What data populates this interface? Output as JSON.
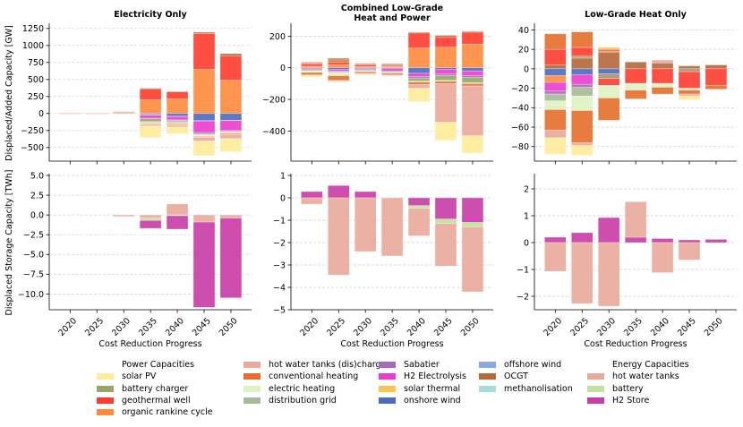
{
  "chart_data": [
    {
      "type": "bar",
      "stacked": true,
      "panel": "top-left",
      "title": "Electricity Only",
      "xlabel": "",
      "ylabel": "Displaced/Added Capacity [GW]",
      "categories": [
        "2020",
        "2025",
        "2030",
        "2035",
        "2040",
        "2045",
        "2050"
      ],
      "ylim": [
        -700,
        1300
      ],
      "yticks": [
        -500,
        -250,
        0,
        250,
        500,
        750,
        1000,
        1250
      ],
      "ytick_labels": [
        "−500",
        "−250",
        "0",
        "250",
        "500",
        "750",
        "1000",
        "1250"
      ],
      "grid": true,
      "series": [
        {
          "name": "organic rankine cycle",
          "values": [
            2,
            1,
            12,
            200,
            215,
            650,
            490
          ]
        },
        {
          "name": "geothermal well",
          "values": [
            1,
            1,
            10,
            165,
            105,
            525,
            355
          ]
        },
        {
          "name": "OCGT",
          "values": [
            0,
            0,
            5,
            5,
            5,
            20,
            35
          ]
        },
        {
          "name": "onshore wind",
          "values": [
            0,
            0,
            0,
            -15,
            -40,
            -105,
            -100
          ]
        },
        {
          "name": "offshore wind",
          "values": [
            0,
            0,
            0,
            -10,
            -5,
            -5,
            -5
          ]
        },
        {
          "name": "H2 Electrolysis",
          "values": [
            0,
            0,
            0,
            -45,
            -50,
            -170,
            -145
          ]
        },
        {
          "name": "Sabatier",
          "values": [
            0,
            0,
            0,
            -5,
            -10,
            -20,
            -10
          ]
        },
        {
          "name": "battery charger",
          "values": [
            0,
            0,
            0,
            -45,
            -15,
            -10,
            -10
          ]
        },
        {
          "name": "distribution grid",
          "values": [
            0,
            0,
            0,
            -10,
            -15,
            -10,
            -10
          ]
        },
        {
          "name": "electric heating",
          "values": [
            0,
            0,
            0,
            -10,
            -15,
            -15,
            -10
          ]
        },
        {
          "name": "conventional heating",
          "values": [
            0,
            0,
            0,
            -10,
            -15,
            -10,
            -15
          ]
        },
        {
          "name": "solar thermal",
          "values": [
            0,
            0,
            0,
            -10,
            -10,
            -5,
            -5
          ]
        },
        {
          "name": "hot water tanks (dis)charger",
          "values": [
            0,
            0,
            0,
            -25,
            -25,
            -55,
            -60
          ]
        },
        {
          "name": "solar PV",
          "values": [
            0,
            0,
            0,
            -170,
            -100,
            -215,
            -190
          ]
        }
      ]
    },
    {
      "type": "bar",
      "stacked": true,
      "panel": "top-center",
      "title": "Combined Low-Grade\nHeat and Power",
      "xlabel": "",
      "ylabel": "",
      "categories": [
        "2020",
        "2025",
        "2030",
        "2035",
        "2040",
        "2045",
        "2050"
      ],
      "ylim": [
        -590,
        270
      ],
      "yticks": [
        -400,
        -200,
        0,
        200
      ],
      "ytick_labels": [
        "−400",
        "−200",
        "0",
        "200"
      ],
      "grid": true,
      "series": [
        {
          "name": "organic rankine cycle",
          "values": [
            10,
            20,
            8,
            5,
            125,
            130,
            150
          ]
        },
        {
          "name": "geothermal well",
          "values": [
            15,
            15,
            10,
            5,
            95,
            65,
            75
          ]
        },
        {
          "name": "conventional heating",
          "values": [
            5,
            15,
            5,
            10,
            0,
            0,
            0
          ]
        },
        {
          "name": "OCGT",
          "values": [
            5,
            10,
            5,
            5,
            5,
            10,
            5
          ]
        },
        {
          "name": "onshore wind",
          "values": [
            -5,
            -10,
            -5,
            -5,
            -35,
            -10,
            -20
          ]
        },
        {
          "name": "H2 Electrolysis",
          "values": [
            -5,
            -10,
            -5,
            -15,
            -20,
            -30,
            -30
          ]
        },
        {
          "name": "Sabatier",
          "values": [
            -5,
            -5,
            -5,
            -5,
            -10,
            -10,
            -10
          ]
        },
        {
          "name": "battery charger",
          "values": [
            -5,
            -5,
            -5,
            -5,
            -20,
            -30,
            -35
          ]
        },
        {
          "name": "electric heating",
          "values": [
            -10,
            -20,
            -5,
            -5,
            -5,
            -5,
            -5
          ]
        },
        {
          "name": "conventional heating (displaced)",
          "values": [
            -15,
            -30,
            -10,
            -10,
            -15,
            -15,
            -15
          ]
        },
        {
          "name": "hot water tanks (dis)charger",
          "values": [
            -5,
            -5,
            -5,
            -5,
            -25,
            -245,
            -315
          ]
        },
        {
          "name": "solar PV",
          "values": [
            -10,
            -5,
            -5,
            0,
            -85,
            -115,
            -110
          ]
        }
      ]
    },
    {
      "type": "bar",
      "stacked": true,
      "panel": "top-right",
      "title": "Low-Grade Heat Only",
      "xlabel": "",
      "ylabel": "",
      "categories": [
        "2020",
        "2025",
        "2030",
        "2035",
        "2040",
        "2045",
        "2050"
      ],
      "ylim": [
        -95,
        45
      ],
      "yticks": [
        -80,
        -60,
        -40,
        -20,
        0,
        20,
        40
      ],
      "ytick_labels": [
        "−80",
        "−60",
        "−40",
        "−20",
        "0",
        "20",
        "40"
      ],
      "grid": true,
      "series": [
        {
          "name": "OCGT",
          "values": [
            4,
            11,
            17,
            7,
            6,
            3,
            4
          ]
        },
        {
          "name": "battery charger",
          "values": [
            0,
            2,
            0,
            0,
            0,
            0,
            0
          ]
        },
        {
          "name": "geothermal well",
          "values": [
            16,
            9,
            1,
            0,
            0,
            0,
            0
          ]
        },
        {
          "name": "conventional heating",
          "values": [
            16,
            16,
            2,
            0,
            0,
            0,
            0
          ]
        },
        {
          "name": "solar thermal",
          "values": [
            0,
            0,
            2,
            0,
            0,
            0,
            0
          ]
        },
        {
          "name": "hot water tanks (dis)charger",
          "values": [
            0,
            0,
            0,
            0,
            3,
            0,
            0
          ]
        },
        {
          "name": "onshore wind",
          "values": [
            -7,
            -6,
            -5,
            0,
            0,
            0,
            0
          ]
        },
        {
          "name": "organic rankine cycle",
          "values": [
            -7,
            0,
            0,
            0,
            0,
            0,
            0
          ]
        },
        {
          "name": "OCGT (displaced)",
          "values": [
            0,
            0,
            -5,
            0,
            0,
            -3,
            0
          ]
        },
        {
          "name": "H2 Electrolysis",
          "values": [
            -9,
            -10,
            0,
            0,
            0,
            0,
            0
          ]
        },
        {
          "name": "geothermal well (displaced)",
          "values": [
            0,
            0,
            -7,
            -15,
            -15,
            -17,
            -17
          ]
        },
        {
          "name": "Sabatier",
          "values": [
            -3,
            -3,
            0,
            0,
            0,
            0,
            0
          ]
        },
        {
          "name": "distribution grid",
          "values": [
            -7,
            -9,
            0,
            0,
            0,
            0,
            0
          ]
        },
        {
          "name": "electric heating",
          "values": [
            -9,
            -15,
            -13,
            -7,
            -4,
            -2,
            0
          ]
        },
        {
          "name": "conventional heating (displaced)",
          "values": [
            -21,
            -33,
            -23,
            -9,
            -7,
            -4,
            -4
          ]
        },
        {
          "name": "hot water tanks (dis)charger (displaced)",
          "values": [
            -8,
            -3,
            0,
            0,
            0,
            -2,
            0
          ]
        },
        {
          "name": "solar PV",
          "values": [
            -17,
            -10,
            0,
            0,
            0,
            -4,
            0
          ]
        }
      ]
    },
    {
      "type": "bar",
      "stacked": true,
      "panel": "bottom-left",
      "title": "",
      "xlabel": "Cost Reduction Progress",
      "ylabel": "Displaced Storage Capacity [TWh]",
      "categories": [
        "2020",
        "2025",
        "2030",
        "2035",
        "2040",
        "2045",
        "2050"
      ],
      "ylim": [
        -12,
        5
      ],
      "yticks": [
        -10.0,
        -7.5,
        -5.0,
        -2.5,
        0.0,
        2.5,
        5.0
      ],
      "ytick_labels": [
        "−10.0",
        "−7.5",
        "−5.0",
        "−2.5",
        "0.0",
        "2.5",
        "5.0"
      ],
      "grid": true,
      "series": [
        {
          "name": "hot water tanks",
          "values": [
            0,
            0,
            -0.2,
            -0.4,
            1.4,
            -0.9,
            -0.4
          ]
        },
        {
          "name": "battery",
          "values": [
            0,
            0,
            0,
            -0.3,
            -0.1,
            0,
            0
          ]
        },
        {
          "name": "H2 Store",
          "values": [
            0,
            0,
            0,
            -1.0,
            -1.7,
            -10.8,
            -10.1
          ]
        }
      ]
    },
    {
      "type": "bar",
      "stacked": true,
      "panel": "bottom-center",
      "title": "",
      "xlabel": "Cost Reduction Progress",
      "ylabel": "",
      "categories": [
        "2020",
        "2025",
        "2030",
        "2035",
        "2040",
        "2045",
        "2050"
      ],
      "ylim": [
        -5,
        1
      ],
      "yticks": [
        -5,
        -4,
        -3,
        -2,
        -1,
        0,
        1
      ],
      "ytick_labels": [
        "−5",
        "−4",
        "−3",
        "−2",
        "−1",
        "0",
        "1"
      ],
      "grid": true,
      "series": [
        {
          "name": "H2 Store",
          "values": [
            0.28,
            0.55,
            0.28,
            0,
            -0.35,
            -0.95,
            -1.1
          ]
        },
        {
          "name": "battery",
          "values": [
            0,
            0,
            0,
            0,
            -0.12,
            -0.2,
            -0.2
          ]
        },
        {
          "name": "hot water tanks",
          "values": [
            -0.28,
            -3.45,
            -2.4,
            -2.6,
            -1.23,
            -1.9,
            -2.9
          ]
        }
      ]
    },
    {
      "type": "bar",
      "stacked": true,
      "panel": "bottom-right",
      "title": "",
      "xlabel": "Cost Reduction Progress",
      "ylabel": "",
      "categories": [
        "2020",
        "2025",
        "2030",
        "2035",
        "2040",
        "2045",
        "2050"
      ],
      "ylim": [
        -2.5,
        2.5
      ],
      "yticks": [
        -2,
        -1,
        0,
        1,
        2
      ],
      "ytick_labels": [
        "−2",
        "−1",
        "0",
        "1",
        "2"
      ],
      "grid": true,
      "series": [
        {
          "name": "H2 Store",
          "values": [
            0.2,
            0.37,
            0.93,
            0.2,
            0.15,
            0.1,
            0.12
          ]
        },
        {
          "name": "hot water tanks",
          "values": [
            -1.07,
            -2.27,
            -2.37,
            1.32,
            -1.12,
            -0.65,
            0
          ]
        }
      ]
    }
  ],
  "colors": {
    "solar PV": "#ffed99",
    "battery charger": "#95a765",
    "geothermal well": "#ff3b2e",
    "organic rankine cycle": "#ff8a3d",
    "hot water tanks (dis)charger": "#eaa99a",
    "conventional heating": "#e66d2a",
    "electric heating": "#dff3c2",
    "distribution grid": "#a7b99a",
    "Sabatier": "#a46bb8",
    "H2 Electrolysis": "#ea3ccf",
    "solar thermal": "#ffc24a",
    "onshore wind": "#4a6bc0",
    "offshore wind": "#8aaae6",
    "OCGT": "#b5683a",
    "methanolisation": "#a0dfdc",
    "hot water tanks": "#eba99c",
    "battery": "#bfe39a",
    "H2 Store": "#c93ba8",
    "conventional heating (displaced)": "#e66d2a",
    "OCGT (displaced)": "#a59070",
    "geothermal well (displaced)": "#ff3b2e",
    "hot water tanks (dis)charger (displaced)": "#eaa99a",
    "grid": "#cccccc",
    "axis": "#000000"
  },
  "legend": {
    "columns": [
      [
        {
          "label": "Power Capacities",
          "header": true
        },
        {
          "label": "solar PV",
          "key": "solar PV"
        },
        {
          "label": "battery charger",
          "key": "battery charger"
        },
        {
          "label": "geothermal well",
          "key": "geothermal well"
        },
        {
          "label": "organic rankine cycle",
          "key": "organic rankine cycle"
        }
      ],
      [
        {
          "label": "hot water tanks (dis)charger",
          "key": "hot water tanks (dis)charger"
        },
        {
          "label": "conventional heating",
          "key": "conventional heating"
        },
        {
          "label": "electric heating",
          "key": "electric heating"
        },
        {
          "label": "distribution grid",
          "key": "distribution grid"
        }
      ],
      [
        {
          "label": "Sabatier",
          "key": "Sabatier"
        },
        {
          "label": "H2 Electrolysis",
          "key": "H2 Electrolysis"
        },
        {
          "label": "solar thermal",
          "key": "solar thermal"
        },
        {
          "label": "onshore wind",
          "key": "onshore wind"
        }
      ],
      [
        {
          "label": "offshore wind",
          "key": "offshore wind"
        },
        {
          "label": "OCGT",
          "key": "OCGT"
        },
        {
          "label": "methanolisation",
          "key": "methanolisation"
        }
      ],
      [
        {
          "label": "Energy Capacities",
          "header": true
        },
        {
          "label": "hot water tanks",
          "key": "hot water tanks"
        },
        {
          "label": "battery",
          "key": "battery"
        },
        {
          "label": "H2 Store",
          "key": "H2 Store"
        }
      ]
    ]
  }
}
